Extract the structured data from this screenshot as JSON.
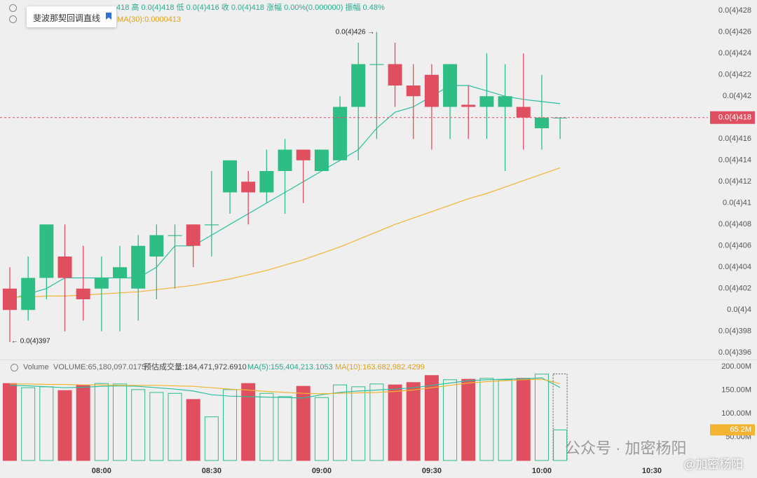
{
  "chart_data": [
    {
      "type": "candlestick",
      "categories": [
        null,
        null,
        null,
        null,
        null,
        "08:00",
        null,
        null,
        null,
        null,
        null,
        "08:30",
        null,
        null,
        null,
        null,
        null,
        "09:00",
        null,
        null,
        null,
        null,
        null,
        "09:30",
        null,
        null,
        null,
        null,
        null,
        "10:00",
        null,
        null,
        null,
        null,
        null,
        "10:30"
      ],
      "open": [
        4.02e-05,
        4e-05,
        4.03e-05,
        4.05e-05,
        4.02e-05,
        4.02e-05,
        4.03e-05,
        4.02e-05,
        4.05e-05,
        4.07e-05,
        4.08e-05,
        4.08e-05,
        4.11e-05,
        4.12e-05,
        4.11e-05,
        4.13e-05,
        4.15e-05,
        4.13e-05,
        4.14e-05,
        4.19e-05,
        4.23e-05,
        4.23e-05,
        4.21e-05,
        4.22e-05,
        4.19e-05,
        4.192e-05,
        4.19e-05,
        4.19e-05,
        4.19e-05,
        4.17e-05,
        4.18e-05,
        null,
        null,
        null,
        null,
        null
      ],
      "high": [
        4.04e-05,
        4.05e-05,
        4.08e-05,
        4.08e-05,
        4.06e-05,
        4.05e-05,
        4.06e-05,
        4.07e-05,
        4.08e-05,
        4.08e-05,
        4.08e-05,
        4.13e-05,
        4.14e-05,
        4.13e-05,
        4.15e-05,
        4.16e-05,
        4.15e-05,
        4.15e-05,
        4.2e-05,
        4.25e-05,
        4.26e-05,
        4.25e-05,
        4.23e-05,
        4.23e-05,
        4.23e-05,
        4.21e-05,
        4.24e-05,
        4.23e-05,
        4.24e-05,
        4.22e-05,
        4.18e-05,
        null,
        null,
        null,
        null,
        null
      ],
      "low": [
        3.97e-05,
        3.99e-05,
        4.01e-05,
        3.98e-05,
        3.99e-05,
        3.98e-05,
        3.98e-05,
        3.99e-05,
        4.01e-05,
        4.02e-05,
        4.04e-05,
        4.05e-05,
        4.09e-05,
        4.08e-05,
        4.1e-05,
        4.09e-05,
        4.1e-05,
        4.13e-05,
        4.14e-05,
        4.14e-05,
        4.16e-05,
        4.19e-05,
        4.16e-05,
        4.15e-05,
        4.16e-05,
        4.16e-05,
        4.16e-05,
        4.13e-05,
        4.15e-05,
        4.15e-05,
        4.16e-05,
        null,
        null,
        null,
        null,
        null
      ],
      "close": [
        4e-05,
        4.03e-05,
        4.08e-05,
        4.03e-05,
        4.01e-05,
        4.03e-05,
        4.04e-05,
        4.06e-05,
        4.07e-05,
        4.07e-05,
        4.06e-05,
        4.08e-05,
        4.14e-05,
        4.11e-05,
        4.13e-05,
        4.15e-05,
        4.14e-05,
        4.15e-05,
        4.19e-05,
        4.23e-05,
        4.23e-05,
        4.21e-05,
        4.2e-05,
        4.19e-05,
        4.23e-05,
        4.19e-05,
        4.2e-05,
        4.2e-05,
        4.18e-05,
        4.18e-05,
        4.18e-05,
        null,
        null,
        null,
        null,
        null
      ],
      "up_color": "#2ebd85",
      "down_color": "#e04f5f",
      "lines": [
        {
          "color": "#2bbfa0",
          "values": [
            4.01e-05,
            4.015e-05,
            4.02e-05,
            4.03e-05,
            4.03e-05,
            4.03e-05,
            4.03e-05,
            4.03e-05,
            4.04e-05,
            4.06e-05,
            4.06e-05,
            4.07e-05,
            4.08e-05,
            4.09e-05,
            4.1e-05,
            4.11e-05,
            4.12e-05,
            4.13e-05,
            4.14e-05,
            4.15e-05,
            4.17e-05,
            4.185e-05,
            4.19e-05,
            4.2e-05,
            4.21e-05,
            4.21e-05,
            4.205e-05,
            4.2e-05,
            4.197e-05,
            4.195e-05,
            4.193e-05,
            null,
            null,
            null,
            null,
            null
          ]
        },
        {
          "color": "#f3b431",
          "values": [
            4.012e-05,
            4.012e-05,
            4.013e-05,
            4.013e-05,
            4.014e-05,
            4.015e-05,
            4.016e-05,
            4.017e-05,
            4.019e-05,
            4.021e-05,
            4.023e-05,
            4.026e-05,
            4.029e-05,
            4.033e-05,
            4.037e-05,
            4.042e-05,
            4.047e-05,
            4.053e-05,
            4.059e-05,
            4.066e-05,
            4.073e-05,
            4.08e-05,
            4.086e-05,
            4.092e-05,
            4.098e-05,
            4.104e-05,
            4.109e-05,
            4.115e-05,
            4.121e-05,
            4.127e-05,
            4.133e-05,
            null,
            null,
            null,
            null,
            null
          ]
        }
      ],
      "last_label": "0.0(4)418",
      "max_label": "0.0(4)426 →",
      "min_label": "← 0.0(4)397",
      "ylim": [
        3.954e-05,
        4.29e-05
      ],
      "yticks": [
        {
          "value": 4.28e-05,
          "label": "0.0(4)428"
        },
        {
          "value": 4.26e-05,
          "label": "0.0(4)426"
        },
        {
          "value": 4.24e-05,
          "label": "0.0(4)424"
        },
        {
          "value": 4.22e-05,
          "label": "0.0(4)422"
        },
        {
          "value": 4.2e-05,
          "label": "0.0(4)42"
        },
        {
          "value": 4.18e-05,
          "label": "0.0(4)418"
        },
        {
          "value": 4.16e-05,
          "label": "0.0(4)416"
        },
        {
          "value": 4.14e-05,
          "label": "0.0(4)414"
        },
        {
          "value": 4.12e-05,
          "label": "0.0(4)412"
        },
        {
          "value": 4.1e-05,
          "label": "0.0(4)41"
        },
        {
          "value": 4.08e-05,
          "label": "0.0(4)408"
        },
        {
          "value": 4.06e-05,
          "label": "0.0(4)406"
        },
        {
          "value": 4.04e-05,
          "label": "0.0(4)404"
        },
        {
          "value": 4.02e-05,
          "label": "0.0(4)402"
        },
        {
          "value": 4e-05,
          "label": "0.0(4)4"
        },
        {
          "value": 3.98e-05,
          "label": "0.0(4)398"
        },
        {
          "value": 3.96e-05,
          "label": "0.0(4)396"
        }
      ],
      "grid": false
    },
    {
      "type": "volume",
      "values": [
        164000000,
        155000000,
        157000000,
        149000000,
        160000000,
        164000000,
        163000000,
        151000000,
        145000000,
        143000000,
        130000000,
        93000000,
        151000000,
        164000000,
        143000000,
        136000000,
        158000000,
        134000000,
        161000000,
        157000000,
        163000000,
        161000000,
        166000000,
        181000000,
        172000000,
        173000000,
        175000000,
        172000000,
        175000000,
        184000000,
        65180097.0175,
        null,
        null,
        null,
        null,
        null
      ],
      "value_labels": [
        null,
        null,
        null,
        null,
        null,
        null,
        null,
        null,
        null,
        null,
        null,
        null,
        null,
        null,
        null,
        null,
        null,
        null,
        null,
        null,
        null,
        null,
        null,
        null,
        null,
        null,
        null,
        null,
        null,
        null,
        "65.2M",
        null,
        null,
        null,
        null,
        null
      ],
      "estimate": 184471972.691,
      "lines": [
        {
          "color": "#2bbfa0",
          "values": [
            160000000,
            159000000,
            157000000,
            155000000,
            156000000,
            158000000,
            159000000,
            158000000,
            155000000,
            152000000,
            148000000,
            140000000,
            137000000,
            136000000,
            135000000,
            134000000,
            133000000,
            140000000,
            145000000,
            148000000,
            150000000,
            152000000,
            155000000,
            160000000,
            165000000,
            170000000,
            172000000,
            173000000,
            174000000,
            176000000,
            155404213.1053,
            null,
            null,
            null,
            null,
            null
          ]
        },
        {
          "color": "#f3b431",
          "values": [
            163000000,
            163000000,
            162000000,
            162000000,
            161000000,
            161000000,
            160000000,
            160000000,
            160000000,
            159000000,
            158000000,
            155000000,
            152000000,
            150000000,
            147000000,
            145000000,
            143000000,
            142000000,
            143000000,
            144000000,
            145000000,
            147000000,
            150000000,
            155000000,
            160000000,
            165000000,
            168000000,
            170000000,
            172000000,
            173000000,
            163682982.4299,
            null,
            null,
            null,
            null,
            null
          ]
        }
      ],
      "ylim": [
        0,
        212000000
      ],
      "yticks": [
        {
          "value": 200000000,
          "label": "200.00M"
        },
        {
          "value": 150000000,
          "label": "150.00M"
        },
        {
          "value": 100000000,
          "label": "100.00M"
        },
        {
          "value": 50000000,
          "label": "50.00M"
        }
      ]
    }
  ],
  "header": {
    "price_info": "418 高 0.0(4)418 低 0.0(4)416 收 0.0(4)418 涨幅 0.00%(0.000000) 振幅 0.48%",
    "price_ma": "MA(30):0.0000413",
    "volume_title": "Volume",
    "volume_info": "VOLUME:65,180,097.0175",
    "volume_estimate": "预估成交量:184,471,972.6910",
    "volume_ma5": "MA(5):155,404,213.1053",
    "volume_ma10": "MA(10):163,682,982.4299"
  },
  "tooltip": "斐波那契回调直线",
  "watermark": "公众号 · 加密杨阳",
  "watermark_handle": "@加密杨阳"
}
